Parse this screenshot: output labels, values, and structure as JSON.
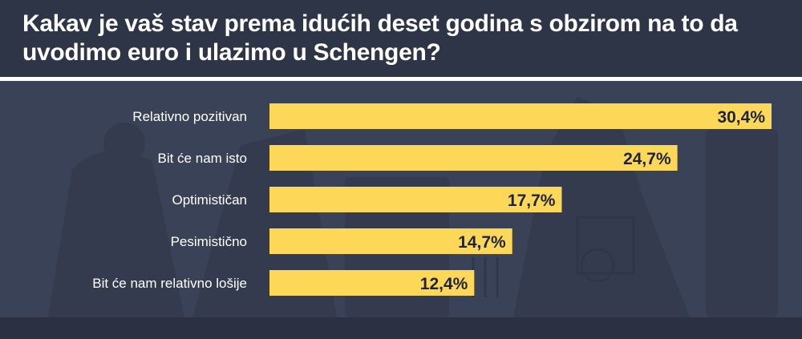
{
  "header": {
    "title": "Kakav je vaš stav prema idućih deset godina s obzirom na to da uvodimo euro i ulazimo u Schengen?"
  },
  "colors": {
    "bar": "#fdd758",
    "header_bg": "#2e3547",
    "panel_bg": "#3a4258"
  },
  "chart_data": {
    "type": "bar",
    "orientation": "horizontal",
    "title": "Kakav je vaš stav prema idućih deset godina s obzirom na to da uvodimo euro i ulazimo u Schengen?",
    "categories": [
      "Relativno pozitivan",
      "Bit će nam isto",
      "Optimističan",
      "Pesimistično",
      "Bit će nam relativno lošije"
    ],
    "values": [
      30.4,
      24.7,
      17.7,
      14.7,
      12.4
    ],
    "value_labels": [
      "30,4%",
      "24,7%",
      "17,7%",
      "14,7%",
      "12,4%"
    ],
    "unit": "%",
    "xlim": [
      0,
      30.4
    ],
    "grid": false,
    "legend": "none"
  }
}
